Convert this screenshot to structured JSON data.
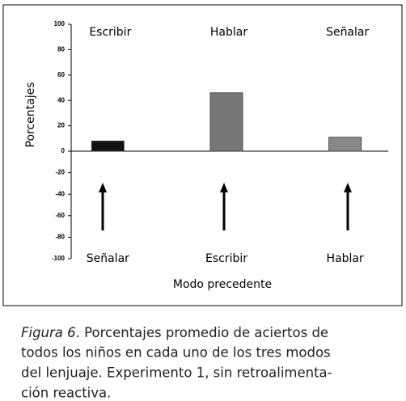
{
  "chart_data": {
    "type": "bar",
    "y_label": "Porcentajes",
    "x_label": "Modo precedente",
    "categories": [
      "Escribir",
      "Hablar",
      "Señalar"
    ],
    "values": [
      8,
      46,
      11
    ],
    "colors": [
      "#111111",
      "#777777",
      "#888888"
    ],
    "ylim": [
      0,
      100
    ],
    "yticks": [
      0,
      20,
      40,
      60,
      80,
      100
    ],
    "y2lim": [
      0,
      -100
    ],
    "y2ticks": [
      -20,
      -40,
      -60,
      -80,
      -100
    ],
    "annotations": [
      "Señalar",
      "Escribir",
      "Hablar"
    ]
  },
  "caption": {
    "label": "Figura 6",
    "lines": [
      ". Porcentajes promedio de aciertos de",
      "todos los niños en cada uno de los tres modos",
      "del lenjuaje. Experimento 1, sin retroalimenta-",
      "ción reactiva."
    ]
  }
}
